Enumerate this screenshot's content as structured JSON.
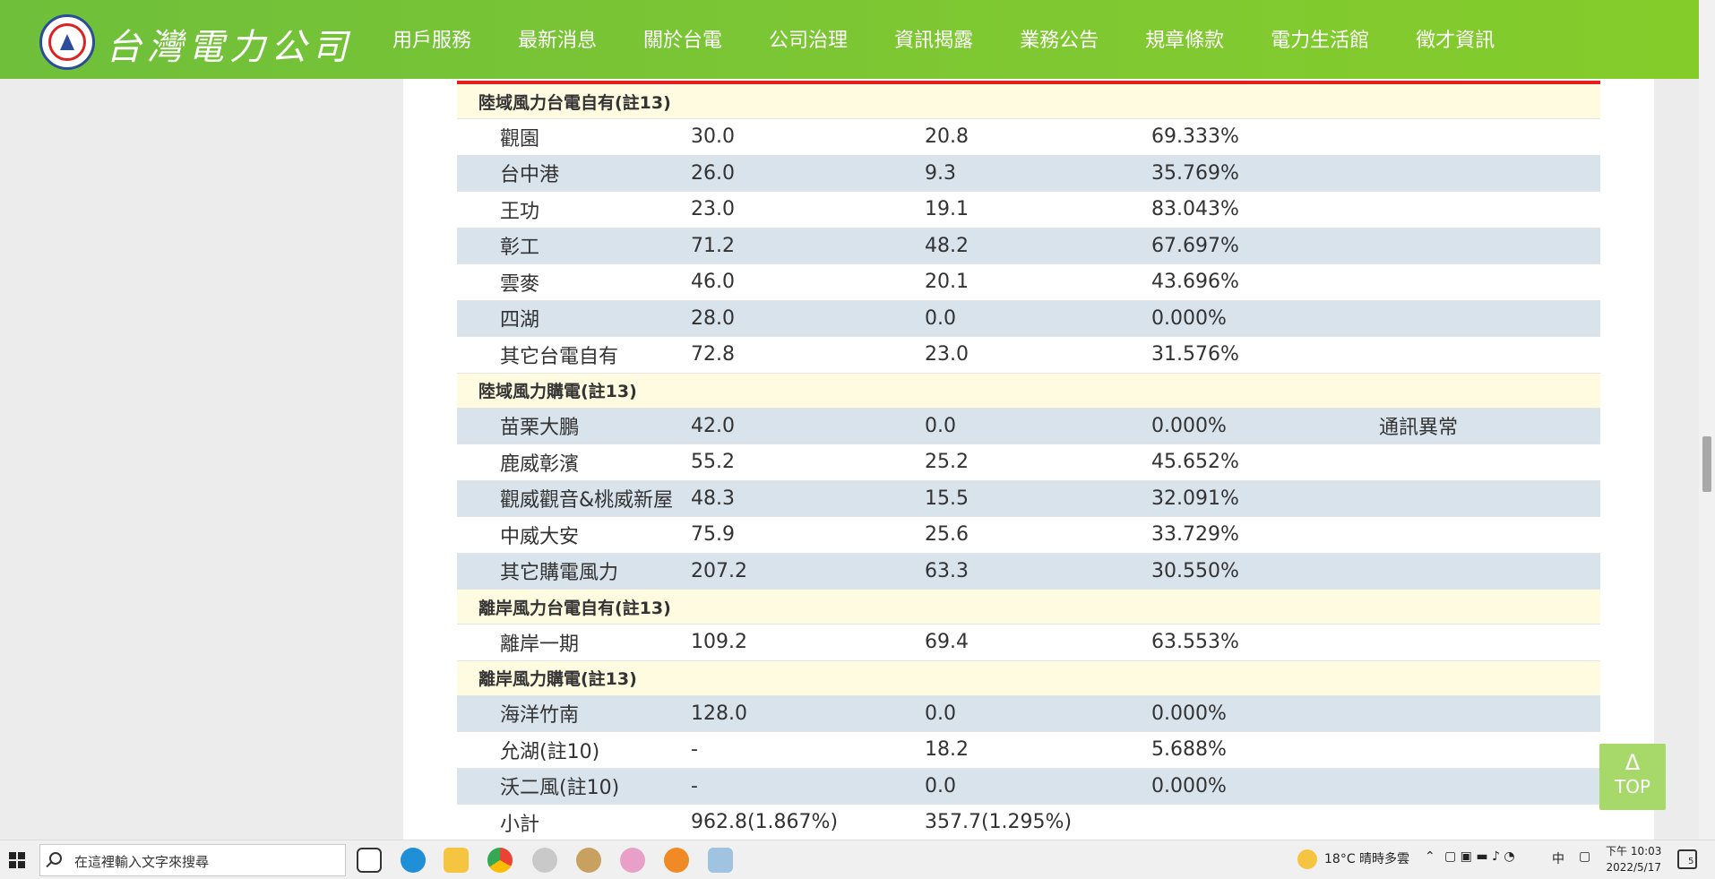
{
  "header": {
    "brand": "台灣電力公司",
    "nav": [
      "用戶服務",
      "最新消息",
      "關於台電",
      "公司治理",
      "資訊揭露",
      "業務公告",
      "規章條款",
      "電力生活館",
      "徵才資訊"
    ],
    "active_index": 4
  },
  "table": {
    "sections": [
      {
        "title": "陸域風力台電自有(註13)",
        "rows": [
          {
            "name": "觀園",
            "capacity": "30.0",
            "output": "20.8",
            "ratio": "69.333%",
            "note": ""
          },
          {
            "name": "台中港",
            "capacity": "26.0",
            "output": "9.3",
            "ratio": "35.769%",
            "note": ""
          },
          {
            "name": "王功",
            "capacity": "23.0",
            "output": "19.1",
            "ratio": "83.043%",
            "note": ""
          },
          {
            "name": "彰工",
            "capacity": "71.2",
            "output": "48.2",
            "ratio": "67.697%",
            "note": ""
          },
          {
            "name": "雲麥",
            "capacity": "46.0",
            "output": "20.1",
            "ratio": "43.696%",
            "note": ""
          },
          {
            "name": "四湖",
            "capacity": "28.0",
            "output": "0.0",
            "ratio": "0.000%",
            "note": ""
          },
          {
            "name": "其它台電自有",
            "capacity": "72.8",
            "output": "23.0",
            "ratio": "31.576%",
            "note": ""
          }
        ]
      },
      {
        "title": "陸域風力購電(註13)",
        "rows": [
          {
            "name": "苗栗大鵬",
            "capacity": "42.0",
            "output": "0.0",
            "ratio": "0.000%",
            "note": "通訊異常"
          },
          {
            "name": "鹿威彰濱",
            "capacity": "55.2",
            "output": "25.2",
            "ratio": "45.652%",
            "note": ""
          },
          {
            "name": "觀威觀音&桃威新屋",
            "capacity": "48.3",
            "output": "15.5",
            "ratio": "32.091%",
            "note": ""
          },
          {
            "name": "中威大安",
            "capacity": "75.9",
            "output": "25.6",
            "ratio": "33.729%",
            "note": ""
          },
          {
            "name": "其它購電風力",
            "capacity": "207.2",
            "output": "63.3",
            "ratio": "30.550%",
            "note": ""
          }
        ]
      },
      {
        "title": "離岸風力台電自有(註13)",
        "rows": [
          {
            "name": "離岸一期",
            "capacity": "109.2",
            "output": "69.4",
            "ratio": "63.553%",
            "note": ""
          }
        ]
      },
      {
        "title": "離岸風力購電(註13)",
        "rows": [
          {
            "name": "海洋竹南",
            "capacity": "128.0",
            "output": "0.0",
            "ratio": "0.000%",
            "note": ""
          },
          {
            "name": "允湖(註10)",
            "capacity": "-",
            "output": "18.2",
            "ratio": "5.688%",
            "note": ""
          },
          {
            "name": "沃二風(註10)",
            "capacity": "-",
            "output": "0.0",
            "ratio": "0.000%",
            "note": ""
          }
        ]
      }
    ],
    "subtotal": {
      "name": "小計",
      "capacity": "962.8(1.867%)",
      "output": "357.7(1.295%)",
      "ratio": "",
      "note": ""
    }
  },
  "top_button": {
    "arrow": "Δ",
    "label": "TOP"
  },
  "taskbar": {
    "search_placeholder": "在這裡輸入文字來搜尋",
    "weather": "18°C 晴時多雲",
    "ime": "中",
    "time": "下午 10:03",
    "date": "2022/5/17",
    "notification_count": "5"
  }
}
